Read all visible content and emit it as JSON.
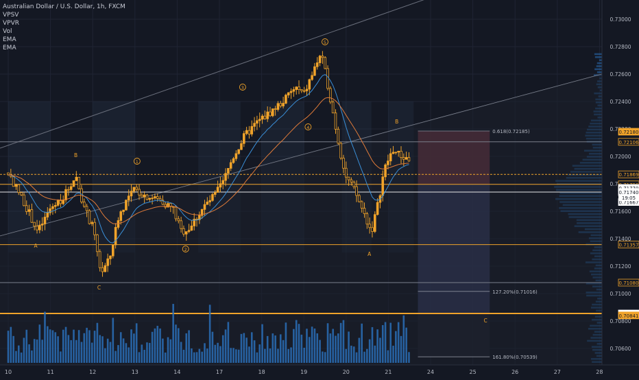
{
  "legend": {
    "title": "Australian Dollar / U.S. Dollar, 1h, FXCM",
    "indicators": [
      "VPSV",
      "VPVR",
      "Vol",
      "EMA",
      "EMA"
    ]
  },
  "colors": {
    "background": "#141823",
    "candle": "#f0a32a",
    "ema_fast": "#3a8fd8",
    "ema_slow": "#e07b39",
    "volume": "#2a6fb8",
    "orange_level": "#f0a32a",
    "white_level": "#e8e8e8",
    "short_stop": "#7a3a45",
    "short_target": "#3a3f66"
  },
  "chart_data": {
    "type": "candlestick",
    "x_ticks": [
      "10",
      "11",
      "12",
      "13",
      "14",
      "17",
      "18",
      "19",
      "20",
      "21",
      "24",
      "25",
      "26",
      "27",
      "28"
    ],
    "y_ticks": [
      "0.73000",
      "0.72800",
      "0.72600",
      "0.72400",
      "0.72200",
      "0.72000",
      "0.71800",
      "0.71600",
      "0.71400",
      "0.71200",
      "0.71000",
      "0.70800",
      "0.70600"
    ],
    "ylim": [
      0.7048,
      0.7314
    ],
    "price_labels": [
      {
        "value": 0.7218,
        "text": "0.72180",
        "style": "orange"
      },
      {
        "value": 0.72106,
        "text": "0.72106",
        "style": "outline"
      },
      {
        "value": 0.71869,
        "text": "0.71869",
        "style": "outline"
      },
      {
        "value": 0.71796,
        "text": "0.71796",
        "style": "outline"
      },
      {
        "value": 0.7177,
        "text": "0.71770",
        "style": "white"
      },
      {
        "value": 0.7174,
        "text": "0.71740",
        "style": "white"
      },
      {
        "value": 0.71667,
        "text": "0.71667",
        "style": "white"
      },
      {
        "value": 0.71357,
        "text": "0.71357",
        "style": "outline"
      },
      {
        "value": 0.7108,
        "text": "0.71080",
        "style": "outline"
      },
      {
        "value": 0.70855,
        "text": "0.70855",
        "style": "white"
      },
      {
        "value": 0.70841,
        "text": "0.70841",
        "style": "orange"
      }
    ],
    "countdown": "19:05",
    "fib_levels": [
      {
        "value": 0.72185,
        "text": "0.618(0.72185)"
      },
      {
        "value": 0.71016,
        "text": "127.20%(0.71016)"
      },
      {
        "value": 0.70539,
        "text": "161.80%(0.70539)"
      }
    ],
    "horizontal_levels": [
      {
        "value": 0.72106,
        "color": "#7a7f8c"
      },
      {
        "value": 0.71869,
        "color": "#f0a32a",
        "dashed": true
      },
      {
        "value": 0.71796,
        "color": "#f0a32a"
      },
      {
        "value": 0.7174,
        "color": "#e8e8e8"
      },
      {
        "value": 0.71357,
        "color": "#f0a32a"
      },
      {
        "value": 0.7108,
        "color": "#7a7f8c"
      },
      {
        "value": 0.70855,
        "color": "#f0a32a",
        "thick": true
      }
    ],
    "wave_labels": [
      {
        "text": "A",
        "x": 0.65,
        "y": 0.71335
      },
      {
        "text": "B",
        "x": 1.6,
        "y": 0.71995
      },
      {
        "text": "C",
        "x": 2.15,
        "y": 0.7103
      },
      {
        "text": "1",
        "x": 3.05,
        "y": 0.7195,
        "circle": true
      },
      {
        "text": "2",
        "x": 4.2,
        "y": 0.7131,
        "circle": true
      },
      {
        "text": "3",
        "x": 5.55,
        "y": 0.7249,
        "circle": true
      },
      {
        "text": "4",
        "x": 7.1,
        "y": 0.722,
        "circle": true
      },
      {
        "text": "5",
        "x": 7.5,
        "y": 0.7282,
        "circle": true
      },
      {
        "text": "A",
        "x": 8.55,
        "y": 0.71275
      },
      {
        "text": "B",
        "x": 9.2,
        "y": 0.7224
      },
      {
        "text": "C",
        "x": 11.3,
        "y": 0.7079
      }
    ],
    "ohlc_pivots": [
      [
        0.0,
        0.7188
      ],
      [
        0.4,
        0.7165
      ],
      [
        0.7,
        0.7145
      ],
      [
        1.0,
        0.7162
      ],
      [
        1.3,
        0.717
      ],
      [
        1.6,
        0.7186
      ],
      [
        1.8,
        0.7162
      ],
      [
        2.0,
        0.7148
      ],
      [
        2.2,
        0.7115
      ],
      [
        2.4,
        0.7125
      ],
      [
        2.6,
        0.7155
      ],
      [
        2.8,
        0.7168
      ],
      [
        3.0,
        0.7176
      ],
      [
        3.2,
        0.7172
      ],
      [
        3.6,
        0.7168
      ],
      [
        3.9,
        0.7162
      ],
      [
        4.1,
        0.7145
      ],
      [
        4.3,
        0.7148
      ],
      [
        4.6,
        0.7162
      ],
      [
        4.9,
        0.7172
      ],
      [
        5.1,
        0.7182
      ],
      [
        5.3,
        0.7198
      ],
      [
        5.6,
        0.7215
      ],
      [
        5.9,
        0.7225
      ],
      [
        6.2,
        0.7232
      ],
      [
        6.5,
        0.724
      ],
      [
        6.8,
        0.725
      ],
      [
        7.0,
        0.7245
      ],
      [
        7.2,
        0.726
      ],
      [
        7.4,
        0.7275
      ],
      [
        7.55,
        0.7255
      ],
      [
        7.7,
        0.723
      ],
      [
        7.85,
        0.7205
      ],
      [
        8.0,
        0.7185
      ],
      [
        8.2,
        0.7175
      ],
      [
        8.4,
        0.716
      ],
      [
        8.6,
        0.7145
      ],
      [
        8.75,
        0.7165
      ],
      [
        8.9,
        0.719
      ],
      [
        9.1,
        0.7205
      ],
      [
        9.3,
        0.72
      ],
      [
        9.5,
        0.7198
      ],
      [
        9.55,
        0.71667
      ]
    ]
  }
}
